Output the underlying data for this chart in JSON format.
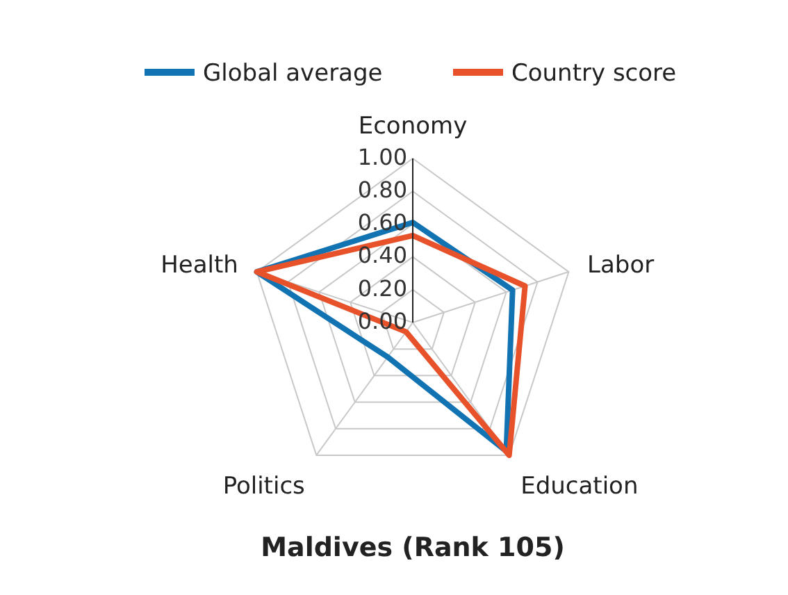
{
  "chart_data": {
    "type": "radar",
    "title": "Maldives (Rank 105)",
    "categories": [
      "Economy",
      "Labor",
      "Education",
      "Politics",
      "Health"
    ],
    "series": [
      {
        "name": "Global average",
        "color": "#1273b3",
        "values": [
          0.61,
          0.64,
          0.97,
          0.26,
          1.0
        ]
      },
      {
        "name": "Country score",
        "color": "#e8522b",
        "values": [
          0.53,
          0.72,
          1.0,
          0.07,
          1.0
        ]
      }
    ],
    "ylim": [
      0,
      1
    ],
    "yticks": [
      {
        "value": 0,
        "label": "0.00"
      },
      {
        "value": 0.2,
        "label": "0.20"
      },
      {
        "value": 0.4,
        "label": "0.40"
      },
      {
        "value": 0.6,
        "label": "0.60"
      },
      {
        "value": 0.8,
        "label": "0.80"
      },
      {
        "value": 1,
        "label": "1.00"
      }
    ],
    "grid": true,
    "legend": "top"
  }
}
